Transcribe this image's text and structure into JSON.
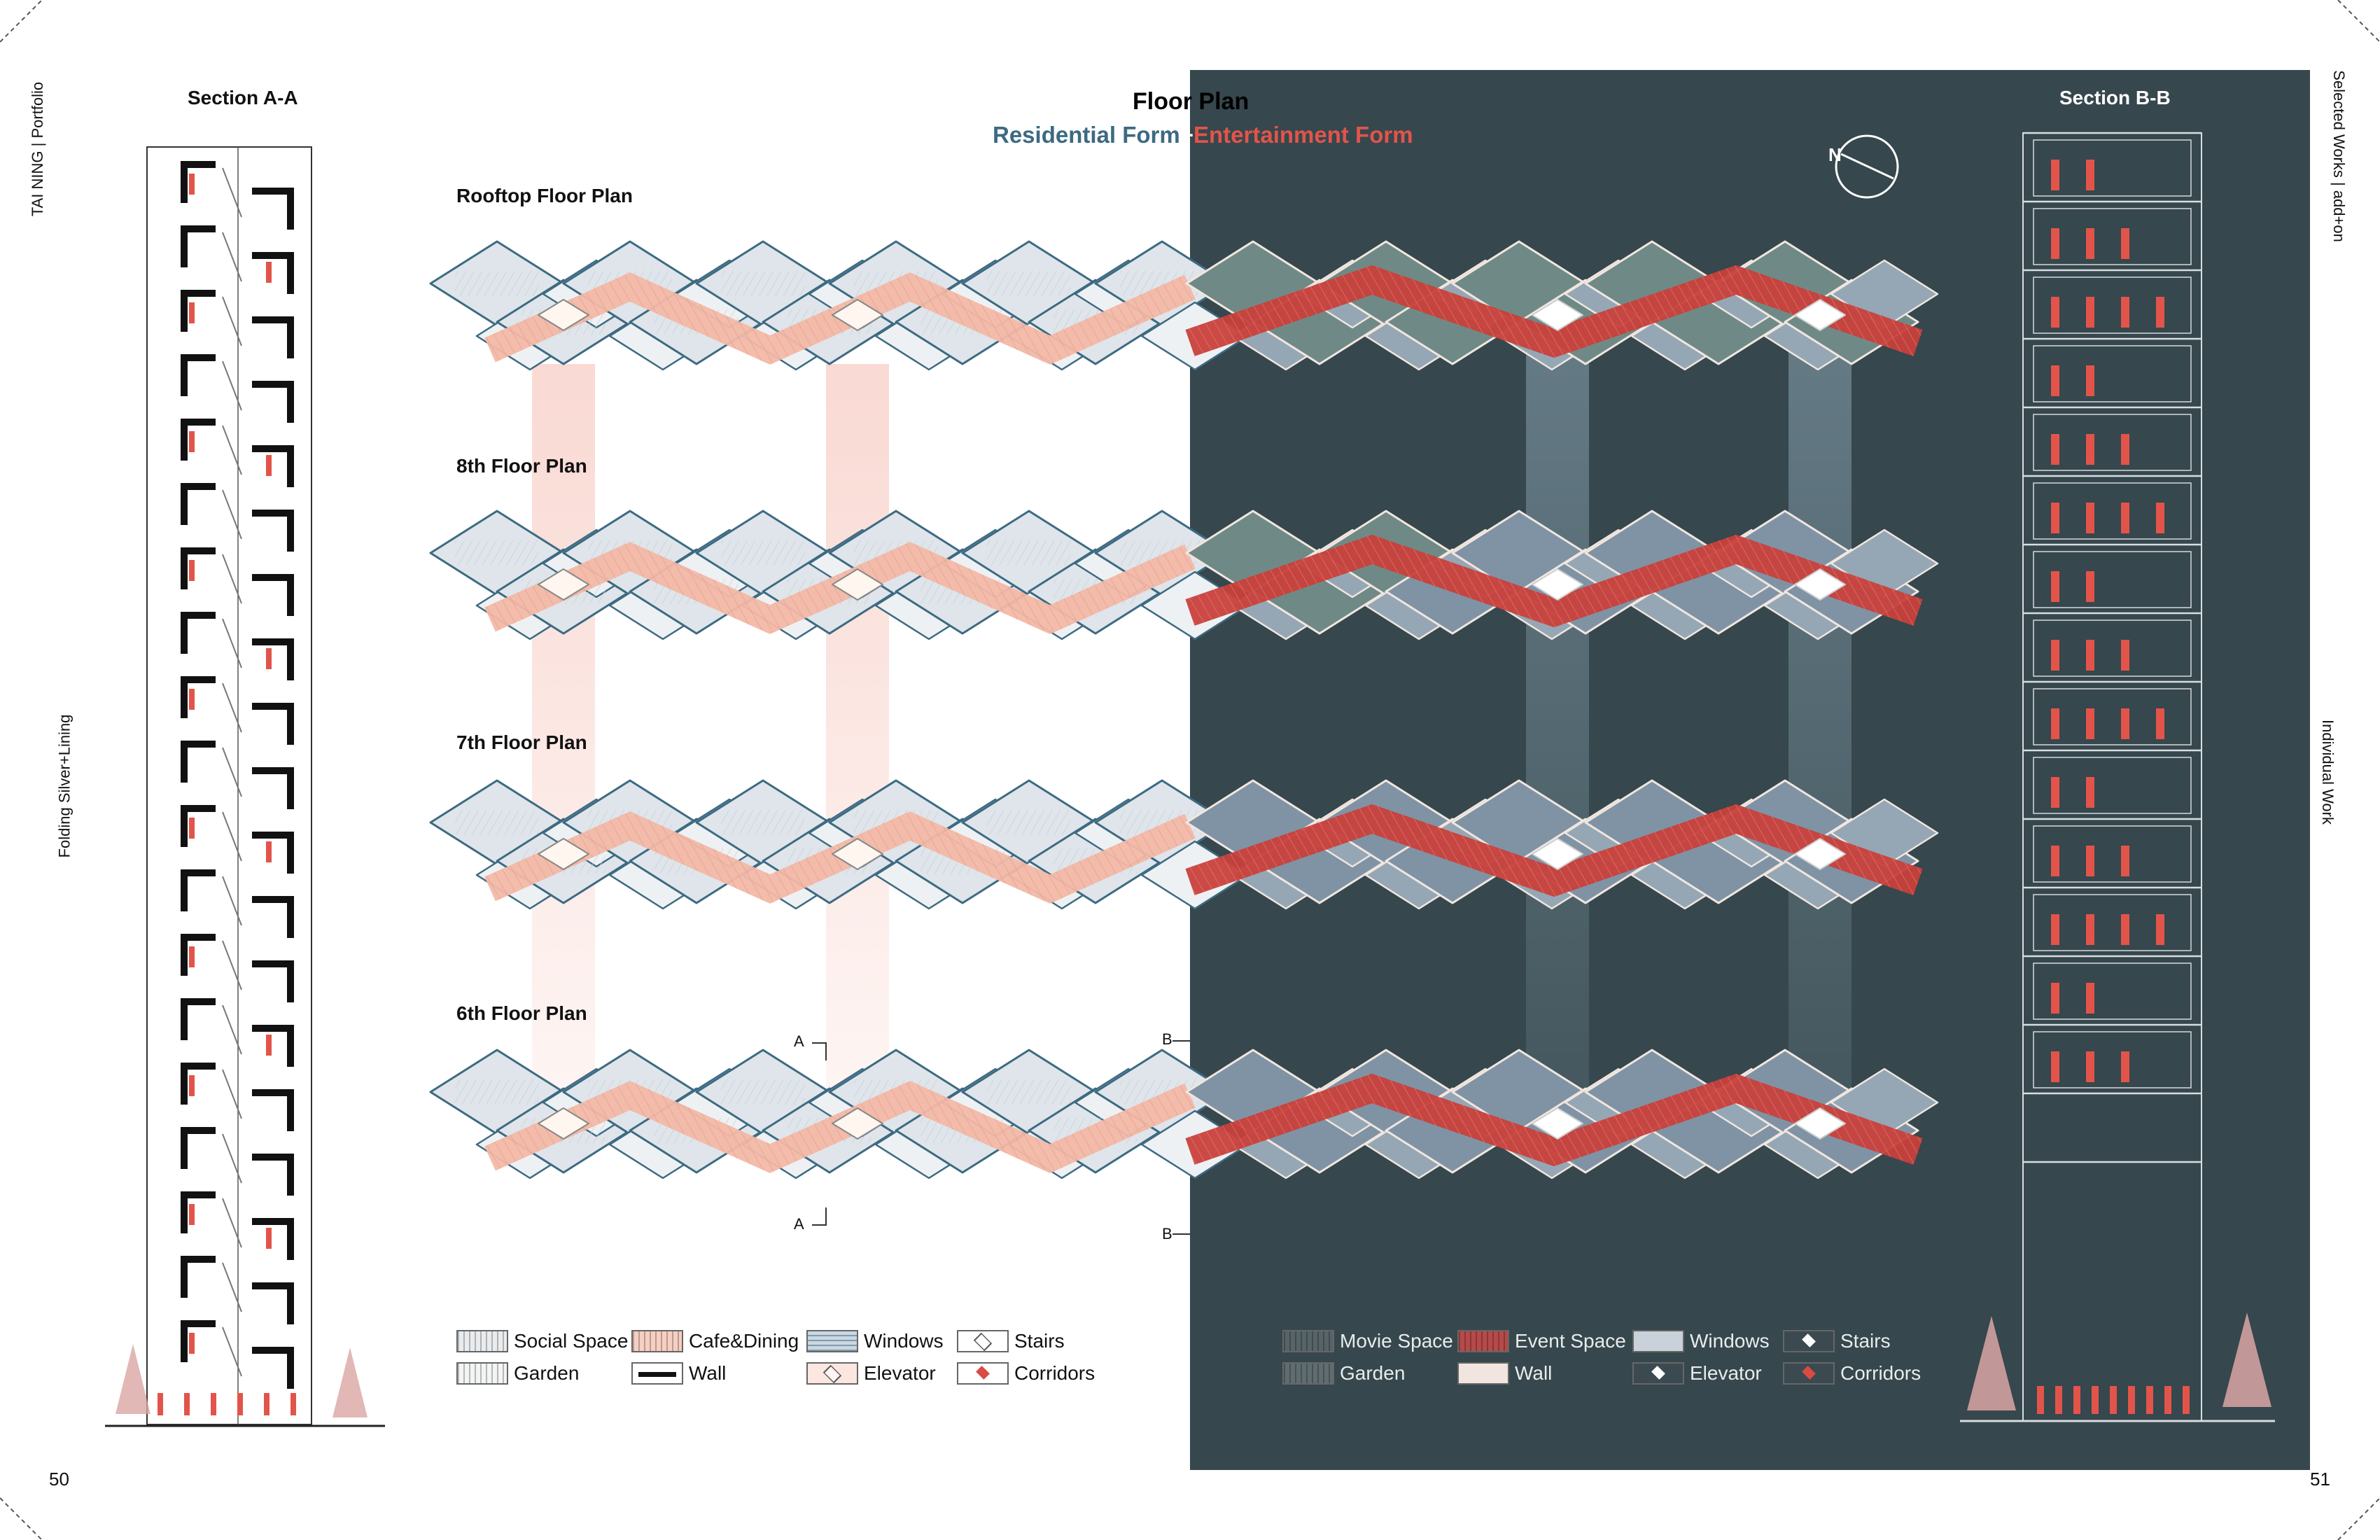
{
  "header": {
    "title": "Floor Plan",
    "subtitle_residential": "Residential Form",
    "subtitle_plus": "+",
    "subtitle_entertainment": "Entertainment Form"
  },
  "margins": {
    "left_top": "TAI NING | Portfolio",
    "left_mid": "Folding Silver+Lining",
    "right_top": "Selected Works | add+on",
    "right_mid": "Individual Work"
  },
  "sections": {
    "left_title": "Section A-A",
    "right_title": "Section B-B"
  },
  "plans": [
    {
      "label": "Rooftop Floor Plan"
    },
    {
      "label": "8th Floor Plan"
    },
    {
      "label": "7th Floor Plan"
    },
    {
      "label": "6th Floor Plan"
    }
  ],
  "cut_marks": {
    "a_top": "A",
    "a_bottom": "A",
    "b_top": "B",
    "b_bottom": "B"
  },
  "legend_light": [
    {
      "label": "Social Space",
      "swatch": "#e9ecee",
      "pattern": "vlines"
    },
    {
      "label": "Cafe&Dining",
      "swatch": "#f6cfc2",
      "pattern": "vlines"
    },
    {
      "label": "Windows",
      "swatch": "#c9d8e2",
      "pattern": "hlines"
    },
    {
      "label": "Stairs",
      "swatch": "#ffffff",
      "pattern": "diamond"
    },
    {
      "label": "Garden",
      "swatch": "#f3f4f4",
      "pattern": "vlines"
    },
    {
      "label": "Wall",
      "swatch": "#ffffff",
      "pattern": "bar"
    },
    {
      "label": "Elevator",
      "swatch": "#fbe6e0",
      "pattern": "diamond"
    },
    {
      "label": "Corridors",
      "swatch": "#ffffff",
      "pattern": "reddiamond"
    }
  ],
  "legend_dark": [
    {
      "label": "Movie Space",
      "swatch": "#566469",
      "pattern": "vlines"
    },
    {
      "label": "Event Space",
      "swatch": "#b64a48",
      "pattern": "vlines"
    },
    {
      "label": "Windows",
      "swatch": "#c9d2da",
      "pattern": "plain"
    },
    {
      "label": "Stairs",
      "swatch": "#3a4a50",
      "pattern": "whitediamond"
    },
    {
      "label": "Garden",
      "swatch": "#5f6d72",
      "pattern": "vlines"
    },
    {
      "label": "Wall",
      "swatch": "#f1e6df",
      "pattern": "plain"
    },
    {
      "label": "Elevator",
      "swatch": "#3a4a50",
      "pattern": "whitediamond"
    },
    {
      "label": "Corridors",
      "swatch": "#3a4a50",
      "pattern": "reddiamond"
    }
  ],
  "page_numbers": {
    "left": "50",
    "right": "51"
  },
  "colors": {
    "dark_panel": "#36474d",
    "residential_blue": "#3d6a82",
    "entertainment_red": "#e2544a",
    "corridor_pink": "#f2b8a6",
    "slab_light": "#dfe5ea",
    "slab_dark_green": "#6f8a86",
    "slab_dark_blue": "#7f93a5"
  }
}
